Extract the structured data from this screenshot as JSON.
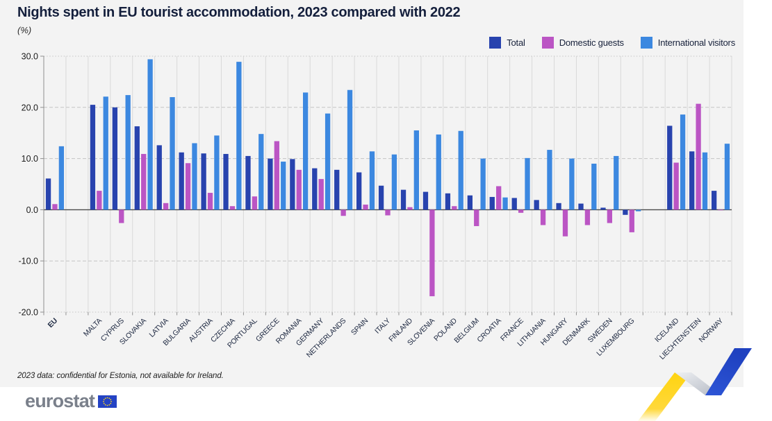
{
  "footnote": "2023 data: confidential for Estonia, not available for Ireland.",
  "logo_text": "eurostat",
  "colors": {
    "panel_bg": "#f3f3f3",
    "zero_line": "#4a4a4a",
    "axis_line": "#8f8f8f",
    "v_gridline": "#d9d9d9",
    "h_gridline": "#c4c4c4",
    "tick_label": "#1b1b1b",
    "category_label": "#1c2740",
    "ribbon_yellow": "#ffd410",
    "ribbon_silver": "#c3c7cf",
    "ribbon_blue": "#2447c9",
    "flag_blue": "#2443c4",
    "flag_stars": "#ffd617",
    "logo_gray": "#7a808b"
  },
  "chart_data": {
    "type": "bar",
    "title": "Nights spent in EU tourist accommodation, 2023 compared with 2022",
    "subtitle_unit": "(%)",
    "ylim": [
      -20,
      30
    ],
    "yticks": [
      30,
      20,
      10,
      0,
      -10,
      -20
    ],
    "ytick_labels": [
      "30.0",
      "20.0",
      "10.0",
      "0.0",
      "-10.0",
      "-20.0"
    ],
    "grid": "horizontal dashed + vertical column separators",
    "legend_position": "top-right",
    "categories": [
      "EU",
      "",
      "MALTA",
      "CYPRUS",
      "SLOVAKIA",
      "LATVIA",
      "BULGARIA",
      "AUSTRIA",
      "CZECHIA",
      "PORTUGAL",
      "GREECE",
      "ROMANIA",
      "GERMANY",
      "NETHERLANDS",
      "SPAIN",
      "ITALY",
      "FINLAND",
      "SLOVENIA",
      "POLAND",
      "BELGIUM",
      "CROATIA",
      "FRANCE",
      "LITHUANIA",
      "HUNGARY",
      "DENMARK",
      "SWEDEN",
      "LUXEMBOURG",
      "",
      "ICELAND",
      "LIECHTENSTEIN",
      "NORWAY"
    ],
    "bold_categories": [
      "EU"
    ],
    "series": [
      {
        "name": "Total",
        "color": "#2843ae",
        "values": [
          6.1,
          null,
          20.5,
          20.0,
          16.3,
          12.6,
          11.2,
          11.0,
          10.9,
          10.5,
          10.0,
          9.9,
          8.1,
          7.8,
          7.3,
          4.7,
          3.9,
          3.5,
          3.2,
          2.8,
          2.5,
          2.3,
          1.9,
          1.3,
          1.2,
          0.4,
          -1.0,
          null,
          16.4,
          11.4,
          3.7
        ]
      },
      {
        "name": "Domestic guests",
        "color": "#bb55c4",
        "values": [
          1.1,
          null,
          3.7,
          -2.6,
          10.9,
          1.3,
          9.1,
          3.3,
          0.7,
          2.6,
          13.4,
          7.8,
          6.0,
          -1.2,
          1.0,
          -1.1,
          0.5,
          -16.9,
          0.7,
          -3.2,
          4.6,
          -0.6,
          -3.0,
          -5.2,
          -3.0,
          -2.6,
          -4.4,
          null,
          9.2,
          20.7,
          -0.1
        ]
      },
      {
        "name": "International visitors",
        "color": "#3c88e0",
        "values": [
          12.4,
          null,
          22.1,
          22.4,
          29.4,
          22.0,
          13.0,
          14.5,
          28.9,
          14.8,
          9.4,
          22.9,
          18.8,
          23.4,
          11.4,
          10.8,
          15.5,
          14.7,
          15.4,
          10.0,
          2.4,
          10.1,
          11.7,
          10.0,
          9.0,
          10.5,
          -0.3,
          null,
          18.6,
          11.2,
          12.9
        ]
      }
    ]
  }
}
